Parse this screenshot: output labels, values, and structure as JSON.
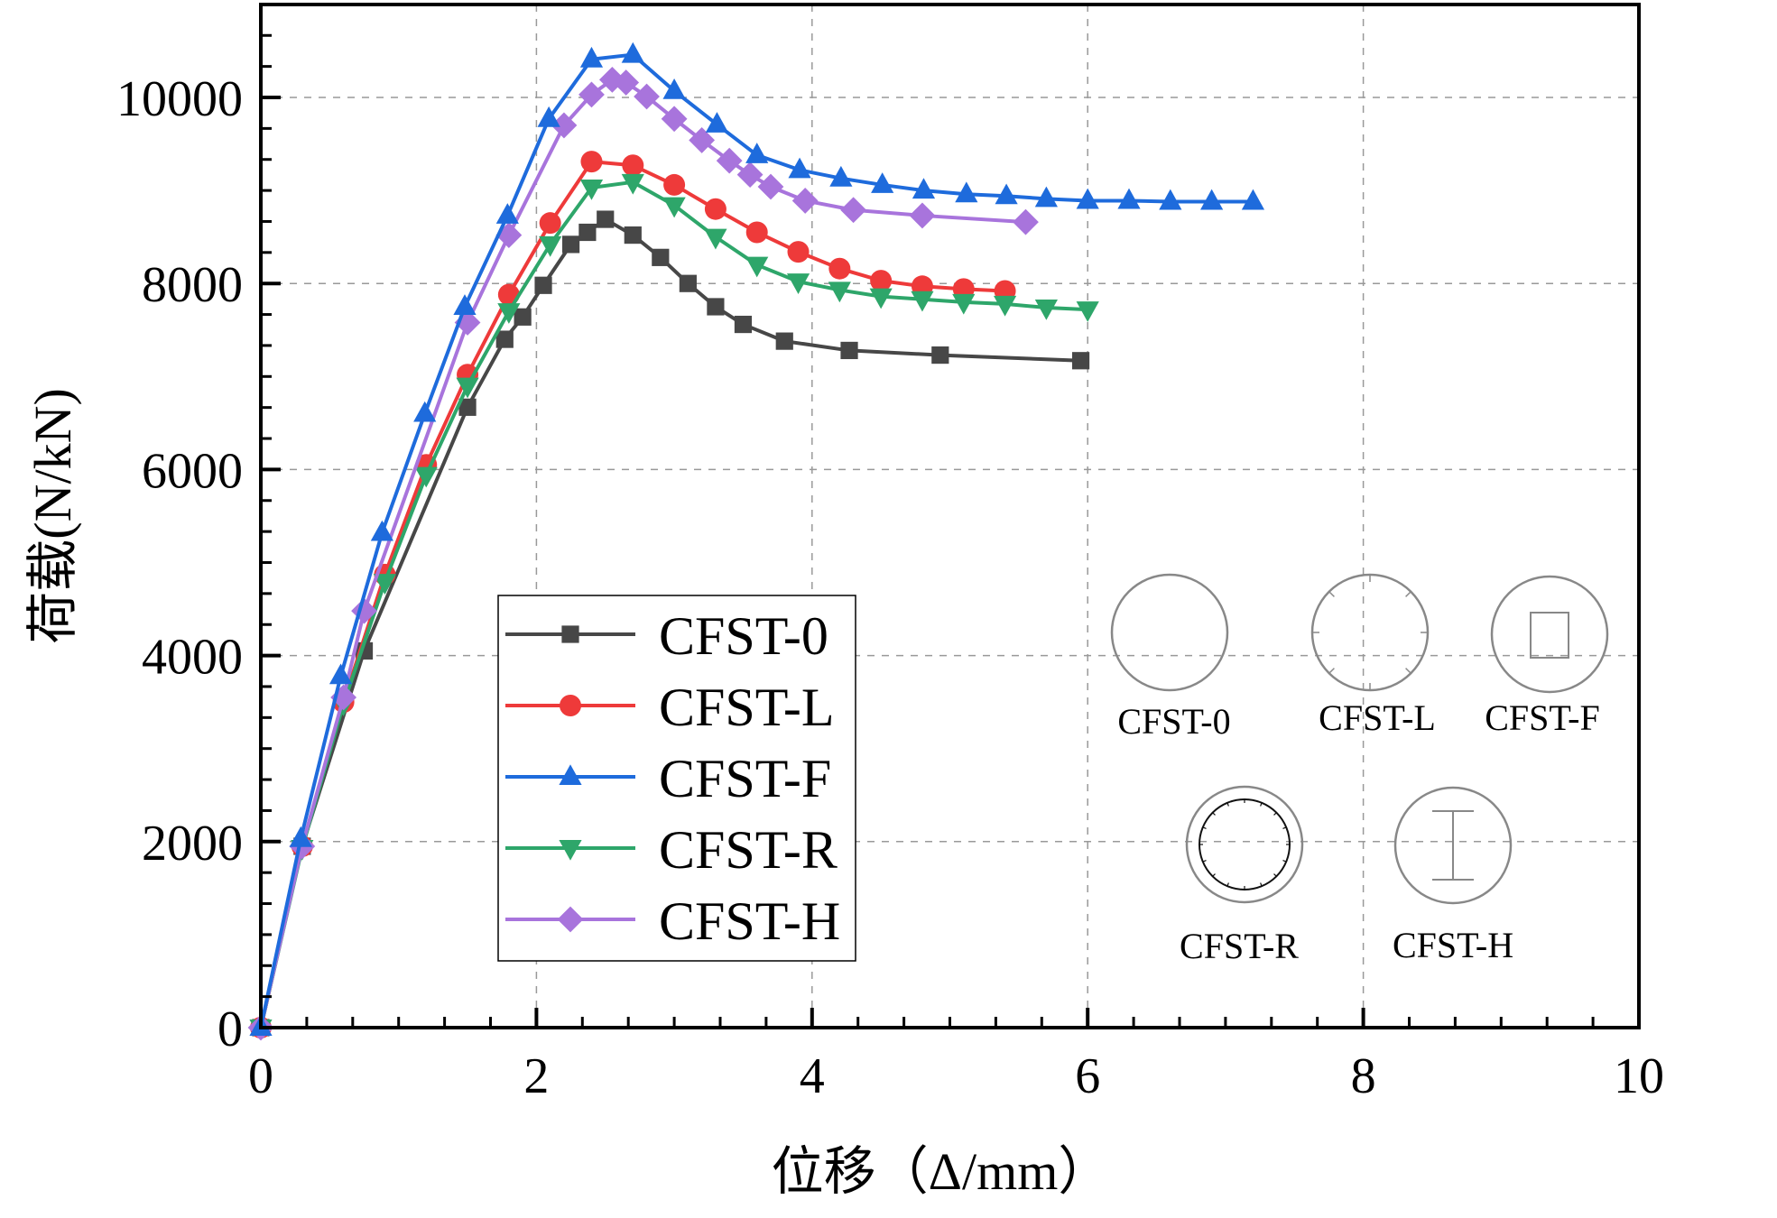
{
  "chart_data": {
    "type": "line",
    "title": "",
    "xlabel": "位移（Δ/mm）",
    "ylabel": "荷载(N/kN)",
    "xlim": [
      0,
      10
    ],
    "ylim": [
      0,
      11000
    ],
    "x_ticks": [
      0,
      2,
      4,
      6,
      8,
      10
    ],
    "x_tick_labels": [
      "0",
      "2",
      "4",
      "6",
      "8",
      "10"
    ],
    "y_ticks": [
      0,
      2000,
      4000,
      6000,
      8000,
      10000
    ],
    "y_tick_labels": [
      "0",
      "2000",
      "4000",
      "6000",
      "8000",
      "10000"
    ],
    "grid": true,
    "legend_position": "center-left",
    "series": [
      {
        "name": "CFST-0",
        "color": "#474747",
        "marker": "square",
        "x": [
          0,
          0.3,
          0.75,
          1.5,
          1.77,
          1.9,
          2.05,
          2.25,
          2.37,
          2.5,
          2.7,
          2.9,
          3.1,
          3.3,
          3.5,
          3.8,
          4.27,
          4.93,
          5.95
        ],
        "y": [
          0,
          1950,
          4050,
          6670,
          7400,
          7640,
          7980,
          8420,
          8550,
          8690,
          8520,
          8280,
          8000,
          7750,
          7560,
          7380,
          7280,
          7230,
          7170
        ]
      },
      {
        "name": "CFST-L",
        "color": "#EE3A3A",
        "marker": "circle",
        "x": [
          0,
          0.3,
          0.6,
          0.9,
          1.2,
          1.5,
          1.8,
          2.1,
          2.4,
          2.7,
          3.0,
          3.3,
          3.6,
          3.9,
          4.2,
          4.5,
          4.8,
          5.1,
          5.4
        ],
        "y": [
          0,
          1950,
          3500,
          4870,
          6050,
          7020,
          7880,
          8650,
          9310,
          9270,
          9060,
          8800,
          8550,
          8340,
          8160,
          8030,
          7970,
          7940,
          7920
        ]
      },
      {
        "name": "CFST-F",
        "color": "#1E6BDC",
        "marker": "triangle-up",
        "x": [
          0,
          0.29,
          0.58,
          0.88,
          1.19,
          1.48,
          1.79,
          2.09,
          2.4,
          2.7,
          3.0,
          3.31,
          3.6,
          3.91,
          4.21,
          4.51,
          4.81,
          5.12,
          5.41,
          5.7,
          6.0,
          6.3,
          6.6,
          6.9,
          7.2
        ],
        "y": [
          0,
          2030,
          3780,
          5320,
          6600,
          7750,
          8730,
          9770,
          10410,
          10460,
          10070,
          9710,
          9380,
          9220,
          9130,
          9060,
          9000,
          8960,
          8940,
          8910,
          8890,
          8890,
          8880,
          8880,
          8880
        ]
      },
      {
        "name": "CFST-R",
        "color": "#2EA66A",
        "marker": "triangle-down",
        "x": [
          0,
          0.3,
          0.6,
          0.9,
          1.2,
          1.5,
          1.8,
          2.1,
          2.4,
          2.7,
          3.0,
          3.3,
          3.6,
          3.9,
          4.2,
          4.5,
          4.8,
          5.1,
          5.4,
          5.7,
          6.0
        ],
        "y": [
          0,
          1930,
          3480,
          4790,
          5940,
          6900,
          7700,
          8420,
          9030,
          9090,
          8840,
          8500,
          8200,
          8020,
          7930,
          7860,
          7830,
          7800,
          7780,
          7740,
          7720
        ]
      },
      {
        "name": "CFST-H",
        "color": "#A874DC",
        "marker": "diamond",
        "x": [
          0,
          0.3,
          0.6,
          0.75,
          1.5,
          1.8,
          2.2,
          2.4,
          2.55,
          2.65,
          2.8,
          3.0,
          3.2,
          3.4,
          3.55,
          3.7,
          3.95,
          4.3,
          4.8,
          5.55
        ],
        "y": [
          0,
          1950,
          3550,
          4480,
          7580,
          8520,
          9700,
          10030,
          10190,
          10160,
          10010,
          9770,
          9540,
          9320,
          9170,
          9040,
          8890,
          8790,
          8730,
          8660
        ]
      }
    ],
    "inset_sections": [
      {
        "label": "CFST-0",
        "icon": "plain-circle-section"
      },
      {
        "label": "CFST-L",
        "icon": "circle-with-longitudinal-ribs-section"
      },
      {
        "label": "CFST-F",
        "icon": "circle-with-square-tube-section"
      },
      {
        "label": "CFST-R",
        "icon": "double-circle-with-ring-bars-section"
      },
      {
        "label": "CFST-H",
        "icon": "circle-with-h-steel-section"
      }
    ]
  }
}
